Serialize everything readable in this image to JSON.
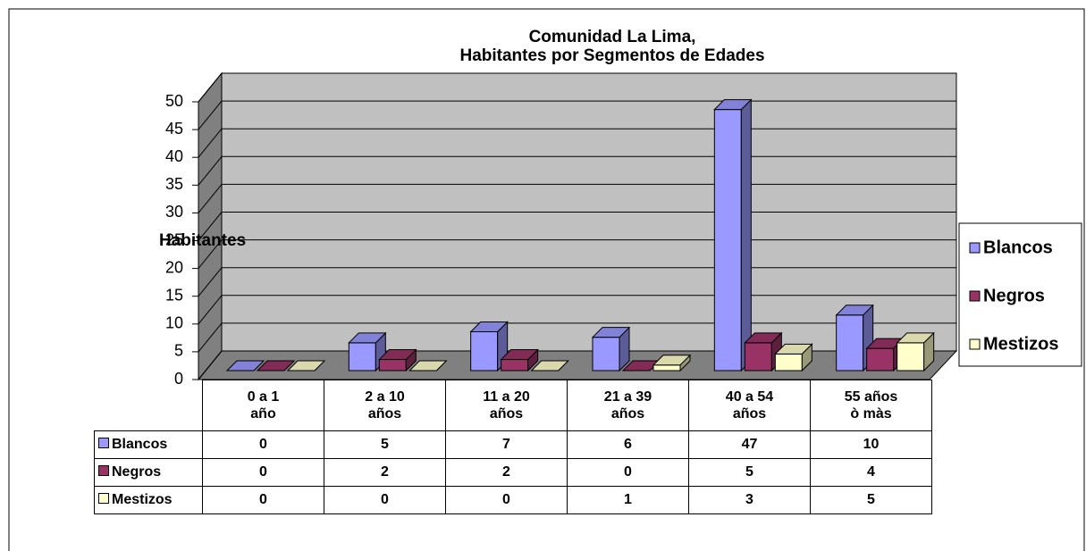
{
  "chart_data": {
    "type": "bar3d",
    "title": [
      "Comunidad La Lima,",
      "Habitantes por Segmentos de Edades"
    ],
    "y_label": "Habitantes",
    "categories": [
      "0 a 1\naño",
      "2 a 10\naños",
      "11 a 20\naños",
      "21 a 39\naños",
      "40 a 54\naños",
      "55 años\nò màs"
    ],
    "series": [
      {
        "name": "Blancos",
        "color": "#9999ff",
        "values": [
          0,
          5,
          7,
          6,
          47,
          10
        ]
      },
      {
        "name": "Negros",
        "color": "#993366",
        "values": [
          0,
          2,
          2,
          0,
          5,
          4
        ]
      },
      {
        "name": "Mestizos",
        "color": "#ffffcc",
        "values": [
          0,
          0,
          0,
          1,
          3,
          5
        ]
      }
    ],
    "ylim": [
      0,
      50
    ],
    "yticks": [
      0,
      5,
      10,
      15,
      20,
      25,
      30,
      35,
      40,
      45,
      50
    ],
    "grid": true,
    "legend": "right"
  }
}
